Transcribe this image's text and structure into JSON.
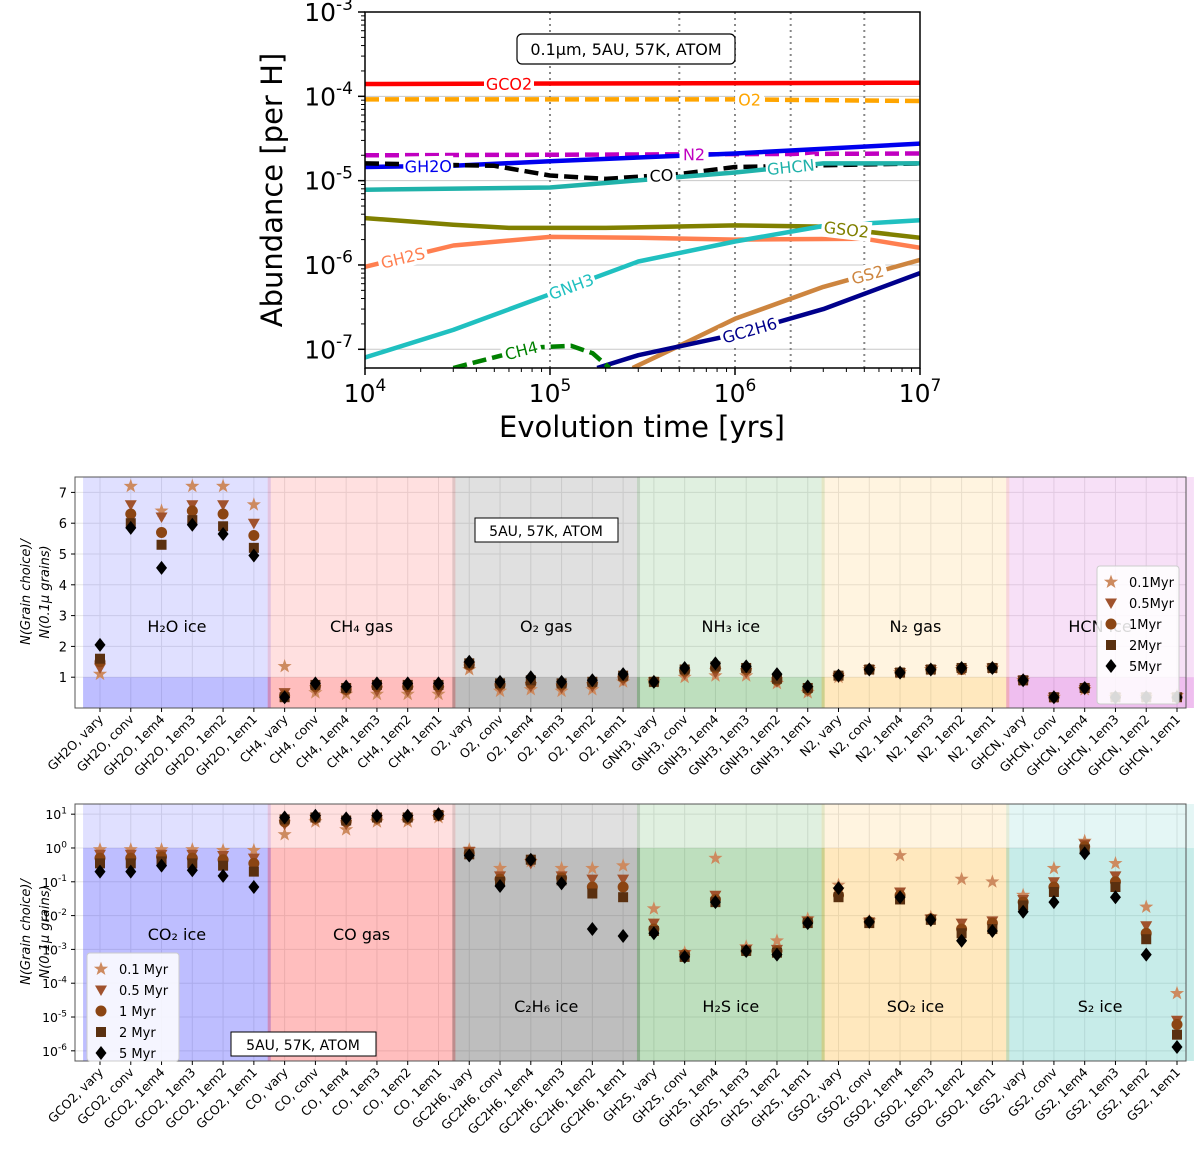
{
  "panels": {
    "top": {
      "ylabel": "Abundance [per H]",
      "xlabel": "Evolution time [yrs]",
      "x_ticks": [
        "10^4",
        "10^5",
        "10^6",
        "10^7"
      ],
      "y_ticks": [
        "10^-7",
        "10^-6",
        "10^-5",
        "10^-4",
        "10^-3"
      ],
      "box_label": "0.1µm, 5AU, 57K, ATOM"
    },
    "middle": {
      "ylabel_line1": "N(Grain choice)/",
      "ylabel_line2": "N(0.1µ grains)",
      "box_label": "5AU, 57K, ATOM",
      "y_ticks": [
        "1",
        "2",
        "3",
        "4",
        "5",
        "6",
        "7"
      ]
    },
    "bottom": {
      "ylabel_line1": "N(Grain choice)/",
      "ylabel_line2": "N(0.1µ grains)",
      "box_label": "5AU, 57K, ATOM",
      "y_ticks": [
        "10^-6",
        "10^-5",
        "10^-4",
        "10^-3",
        "10^-2",
        "10^-1",
        "10^0",
        "10^1"
      ]
    }
  },
  "chart_data": [
    {
      "type": "line",
      "title": "0.1µm, 5AU, 57K, ATOM",
      "xlabel": "Evolution time [yrs]",
      "ylabel": "Abundance [per H]",
      "xscale": "log",
      "yscale": "log",
      "xlim": [
        10000,
        10000000
      ],
      "ylim": [
        6e-08,
        0.001
      ],
      "series": [
        {
          "name": "GCO2",
          "color": "#ff0000",
          "dash": false,
          "label_x": 60000,
          "points": [
            [
              10000,
              0.00014
            ],
            [
              10000000,
              0.000145
            ]
          ]
        },
        {
          "name": "O2",
          "color": "#ffa500",
          "dash": true,
          "label_x": 1200000,
          "points": [
            [
              10000,
              9.2e-05
            ],
            [
              1000000,
              9.2e-05
            ],
            [
              10000000,
              8.8e-05
            ]
          ]
        },
        {
          "name": "N2",
          "color": "#c000c0",
          "dash": true,
          "label_x": 600000,
          "points": [
            [
              10000,
              2e-05
            ],
            [
              400000,
              2.05e-05
            ],
            [
              10000000,
              2.1e-05
            ]
          ]
        },
        {
          "name": "GH2O",
          "color": "#0000ee",
          "dash": false,
          "label_x": 22000,
          "points": [
            [
              10000,
              1.45e-05
            ],
            [
              30000,
              1.5e-05
            ],
            [
              100000,
              1.7e-05
            ],
            [
              1000000,
              2.1e-05
            ],
            [
              10000000,
              2.75e-05
            ]
          ]
        },
        {
          "name": "CO",
          "color": "#000000",
          "dash": true,
          "label_x": 400000,
          "points": [
            [
              10000,
              1.6e-05
            ],
            [
              50000,
              1.5e-05
            ],
            [
              100000,
              1.15e-05
            ],
            [
              200000,
              1.05e-05
            ],
            [
              500000,
              1.2e-05
            ],
            [
              1000000,
              1.45e-05
            ],
            [
              10000000,
              1.6e-05
            ]
          ]
        },
        {
          "name": "GHCN",
          "color": "#20b2aa",
          "dash": false,
          "label_x": 2000000,
          "points": [
            [
              10000,
              7.8e-06
            ],
            [
              100000,
              8.3e-06
            ],
            [
              1000000,
              1.25e-05
            ],
            [
              3000000,
              1.6e-05
            ],
            [
              10000000,
              1.6e-05
            ]
          ]
        },
        {
          "name": "GSO2",
          "color": "#808000",
          "dash": false,
          "label_x": 4000000,
          "points": [
            [
              10000,
              3.6e-06
            ],
            [
              30000,
              3e-06
            ],
            [
              60000,
              2.75e-06
            ],
            [
              200000,
              2.75e-06
            ],
            [
              1000000,
              2.95e-06
            ],
            [
              3000000,
              2.85e-06
            ],
            [
              10000000,
              2.1e-06
            ]
          ]
        },
        {
          "name": "GH2S",
          "color": "#ff7f50",
          "dash": false,
          "label_x": 16000,
          "points": [
            [
              10000,
              9.5e-07
            ],
            [
              30000,
              1.7e-06
            ],
            [
              100000,
              2.15e-06
            ],
            [
              300000,
              2.1e-06
            ],
            [
              1000000,
              2e-06
            ],
            [
              5000000,
              2.05e-06
            ],
            [
              10000000,
              1.6e-06
            ]
          ]
        },
        {
          "name": "GNH3",
          "color": "#20c0c0",
          "dash": false,
          "label_x": 130000,
          "points": [
            [
              10000,
              8e-08
            ],
            [
              30000,
              1.7e-07
            ],
            [
              100000,
              4.5e-07
            ],
            [
              300000,
              1.1e-06
            ],
            [
              1000000,
              1.9e-06
            ],
            [
              3000000,
              2.9e-06
            ],
            [
              10000000,
              3.4e-06
            ]
          ]
        },
        {
          "name": "GS2",
          "color": "#cd853f",
          "dash": false,
          "label_x": 5200000,
          "points": [
            [
              280000,
              6e-08
            ],
            [
              500000,
              1.1e-07
            ],
            [
              1000000,
              2.3e-07
            ],
            [
              3000000,
              5.5e-07
            ],
            [
              10000000,
              1.15e-06
            ]
          ]
        },
        {
          "name": "GC2H6",
          "color": "#00008b",
          "dash": false,
          "label_x": 1200000,
          "points": [
            [
              180000,
              6e-08
            ],
            [
              300000,
              8.5e-08
            ],
            [
              1000000,
              1.5e-07
            ],
            [
              3000000,
              3e-07
            ],
            [
              10000000,
              8e-07
            ]
          ]
        },
        {
          "name": "CH4",
          "color": "#008000",
          "dash": true,
          "label_x": 70000,
          "points": [
            [
              30000,
              6e-08
            ],
            [
              80000,
              1.05e-07
            ],
            [
              130000,
              1.1e-07
            ],
            [
              170000,
              9e-08
            ],
            [
              210000,
              6e-08
            ]
          ]
        }
      ],
      "vlines": [
        100000,
        500000,
        1000000,
        2000000,
        5000000
      ]
    },
    {
      "type": "scatter",
      "title": "5AU, 57K, ATOM",
      "ylabel": "N(Grain choice)/N(0.1µ grains)",
      "yscale": "linear",
      "ylim": [
        0,
        7.5
      ],
      "categories": [
        "GH2O, vary",
        "GH2O, conv",
        "GH2O, 1em4",
        "GH2O, 1em3",
        "GH2O, 1em2",
        "GH2O, 1em1",
        "CH4, vary",
        "CH4, conv",
        "CH4, 1em4",
        "CH4, 1em3",
        "CH4, 1em2",
        "CH4, 1em1",
        "O2, vary",
        "O2, conv",
        "O2, 1em4",
        "O2, 1em3",
        "O2, 1em2",
        "O2, 1em1",
        "GNH3, vary",
        "GNH3, conv",
        "GNH3, 1em4",
        "GNH3, 1em3",
        "GNH3, 1em2",
        "GNH3, 1em1",
        "N2, vary",
        "N2, conv",
        "N2, 1em4",
        "N2, 1em3",
        "N2, 1em2",
        "N2, 1em1",
        "GHCN, vary",
        "GHCN, conv",
        "GHCN, 1em4",
        "GHCN, 1em3",
        "GHCN, 1em2",
        "GHCN, 1em1"
      ],
      "groups": [
        {
          "label": "H₂O ice",
          "color": "#0000ff"
        },
        {
          "label": "CH₄ gas",
          "color": "#ff0000"
        },
        {
          "label": "O₂ gas",
          "color": "#000000"
        },
        {
          "label": "NH₃ ice",
          "color": "#008000"
        },
        {
          "label": "N₂ gas",
          "color": "#ffa500"
        },
        {
          "label": "HCN ice",
          "color": "#c000c0"
        }
      ],
      "series": [
        {
          "name": "0.1Myr",
          "marker": "star",
          "color": "#cd8a5f",
          "values": [
            1.1,
            7.2,
            6.4,
            7.2,
            7.2,
            6.6,
            1.35,
            0.5,
            0.45,
            0.45,
            0.45,
            0.45,
            1.25,
            0.55,
            0.6,
            0.55,
            0.6,
            0.85,
            0.85,
            1.0,
            1.05,
            1.05,
            0.8,
            0.5,
            1.0,
            1.25,
            1.15,
            1.25,
            1.25,
            1.3,
            0.9,
            0.35,
            0.6,
            0.35,
            0.35,
            0.4
          ]
        },
        {
          "name": "0.5Myr",
          "marker": "tri",
          "color": "#a0522d",
          "values": [
            1.3,
            6.6,
            6.2,
            6.6,
            6.6,
            6.0,
            0.5,
            0.6,
            0.55,
            0.55,
            0.55,
            0.55,
            1.35,
            0.65,
            0.7,
            0.65,
            0.7,
            0.9,
            0.85,
            1.1,
            1.15,
            1.15,
            0.85,
            0.55,
            1.0,
            1.25,
            1.15,
            1.25,
            1.25,
            1.3,
            0.9,
            0.35,
            0.6,
            0.35,
            0.35,
            0.35
          ]
        },
        {
          "name": "1Myr",
          "marker": "circle",
          "color": "#8b4513",
          "values": [
            1.5,
            6.3,
            5.7,
            6.4,
            6.3,
            5.6,
            0.4,
            0.7,
            0.6,
            0.7,
            0.7,
            0.7,
            1.4,
            0.75,
            0.8,
            0.75,
            0.8,
            1.0,
            0.85,
            1.2,
            1.3,
            1.25,
            0.9,
            0.6,
            1.05,
            1.25,
            1.15,
            1.25,
            1.25,
            1.3,
            0.9,
            0.35,
            0.65,
            0.35,
            0.35,
            0.35
          ]
        },
        {
          "name": "2Myr",
          "marker": "square",
          "color": "#5a3010",
          "values": [
            1.6,
            6.0,
            5.3,
            6.1,
            5.9,
            5.2,
            0.35,
            0.75,
            0.65,
            0.75,
            0.75,
            0.75,
            1.45,
            0.8,
            0.9,
            0.8,
            0.85,
            1.05,
            0.85,
            1.25,
            1.35,
            1.3,
            0.95,
            0.65,
            1.05,
            1.25,
            1.15,
            1.25,
            1.3,
            1.3,
            0.9,
            0.35,
            0.65,
            0.35,
            0.35,
            0.35
          ]
        },
        {
          "name": "5Myr",
          "marker": "diamond",
          "color": "#000000",
          "values": [
            2.05,
            5.85,
            4.55,
            5.95,
            5.65,
            4.95,
            0.35,
            0.8,
            0.7,
            0.8,
            0.8,
            0.8,
            1.5,
            0.85,
            1.0,
            0.85,
            0.9,
            1.1,
            0.85,
            1.3,
            1.45,
            1.35,
            1.1,
            0.7,
            1.05,
            1.25,
            1.15,
            1.25,
            1.3,
            1.3,
            0.9,
            0.35,
            0.65,
            0.35,
            0.35,
            0.35
          ]
        }
      ]
    },
    {
      "type": "scatter",
      "title": "5AU, 57K, ATOM",
      "ylabel": "N(Grain choice)/N(0.1µ grains)",
      "yscale": "log",
      "ylim": [
        5e-07,
        20
      ],
      "categories": [
        "GCO2, vary",
        "GCO2, conv",
        "GCO2, 1em4",
        "GCO2, 1em3",
        "GCO2, 1em2",
        "GCO2, 1em1",
        "CO, vary",
        "CO, conv",
        "CO, 1em4",
        "CO, 1em3",
        "CO, 1em2",
        "CO, 1em1",
        "GC2H6, vary",
        "GC2H6, conv",
        "GC2H6, 1em4",
        "GC2H6, 1em3",
        "GC2H6, 1em2",
        "GC2H6, 1em1",
        "GH2S, vary",
        "GH2S, conv",
        "GH2S, 1em4",
        "GH2S, 1em3",
        "GH2S, 1em2",
        "GH2S, 1em1",
        "GSO2, vary",
        "GSO2, conv",
        "GSO2, 1em4",
        "GSO2, 1em3",
        "GSO2, 1em2",
        "GSO2, 1em1",
        "GS2, vary",
        "GS2, conv",
        "GS2, 1em4",
        "GS2, 1em3",
        "GS2, 1em2",
        "GS2, 1em1"
      ],
      "groups": [
        {
          "label": "CO₂ ice",
          "color": "#0000ff"
        },
        {
          "label": "CO gas",
          "color": "#ff0000"
        },
        {
          "label": "C₂H₆ ice",
          "color": "#000000"
        },
        {
          "label": "H₂S ice",
          "color": "#008000"
        },
        {
          "label": "SO₂ ice",
          "color": "#ffa500"
        },
        {
          "label": "S₂ ice",
          "color": "#20b2aa"
        }
      ],
      "series": [
        {
          "name": "0.1 Myr",
          "marker": "star",
          "color": "#cd8a5f",
          "values": [
            0.9,
            0.9,
            0.9,
            0.9,
            0.85,
            0.85,
            2.5,
            6,
            3.5,
            6,
            6,
            8,
            0.9,
            0.25,
            0.4,
            0.25,
            0.25,
            0.3,
            0.016,
            0.0008,
            0.5,
            0.0012,
            0.0018,
            0.008,
            0.08,
            0.007,
            0.6,
            0.009,
            0.12,
            0.1,
            0.04,
            0.25,
            1.6,
            0.35,
            0.018,
            5e-05
          ]
        },
        {
          "name": "0.5 Myr",
          "marker": "tri",
          "color": "#a0522d",
          "values": [
            0.65,
            0.65,
            0.65,
            0.65,
            0.6,
            0.5,
            5,
            7,
            5,
            7,
            7,
            9,
            0.8,
            0.15,
            0.35,
            0.15,
            0.12,
            0.12,
            0.006,
            0.0007,
            0.04,
            0.001,
            0.001,
            0.007,
            0.05,
            0.0065,
            0.05,
            0.008,
            0.006,
            0.007,
            0.03,
            0.1,
            1.3,
            0.15,
            0.005,
            8e-06
          ]
        },
        {
          "name": "1 Myr",
          "marker": "circle",
          "color": "#8b4513",
          "values": [
            0.5,
            0.5,
            0.55,
            0.5,
            0.45,
            0.35,
            6,
            7.5,
            6,
            7.5,
            7.5,
            9,
            0.7,
            0.12,
            0.45,
            0.13,
            0.07,
            0.07,
            0.004,
            0.0007,
            0.03,
            0.0009,
            0.0009,
            0.0065,
            0.04,
            0.0065,
            0.04,
            0.008,
            0.004,
            0.006,
            0.025,
            0.07,
            1.1,
            0.1,
            0.003,
            6e-06
          ]
        },
        {
          "name": "2 Myr",
          "marker": "square",
          "color": "#5a3010",
          "values": [
            0.35,
            0.35,
            0.4,
            0.35,
            0.3,
            0.2,
            7,
            8,
            6.5,
            8,
            8,
            9.5,
            0.65,
            0.1,
            0.45,
            0.11,
            0.045,
            0.035,
            0.0035,
            0.0006,
            0.025,
            0.0009,
            0.0008,
            0.006,
            0.035,
            0.006,
            0.03,
            0.0075,
            0.003,
            0.004,
            0.02,
            0.05,
            0.9,
            0.07,
            0.002,
            3e-06
          ]
        },
        {
          "name": "5 Myr",
          "marker": "diamond",
          "color": "#000000",
          "values": [
            0.2,
            0.2,
            0.3,
            0.22,
            0.15,
            0.07,
            8,
            9,
            7.5,
            9,
            9,
            10,
            0.6,
            0.075,
            0.45,
            0.09,
            0.004,
            0.0025,
            0.003,
            0.0006,
            0.025,
            0.0009,
            0.0007,
            0.006,
            0.065,
            0.0065,
            0.035,
            0.0075,
            0.0018,
            0.0035,
            0.013,
            0.025,
            0.7,
            0.035,
            0.0007,
            1.3e-06
          ]
        }
      ]
    }
  ]
}
